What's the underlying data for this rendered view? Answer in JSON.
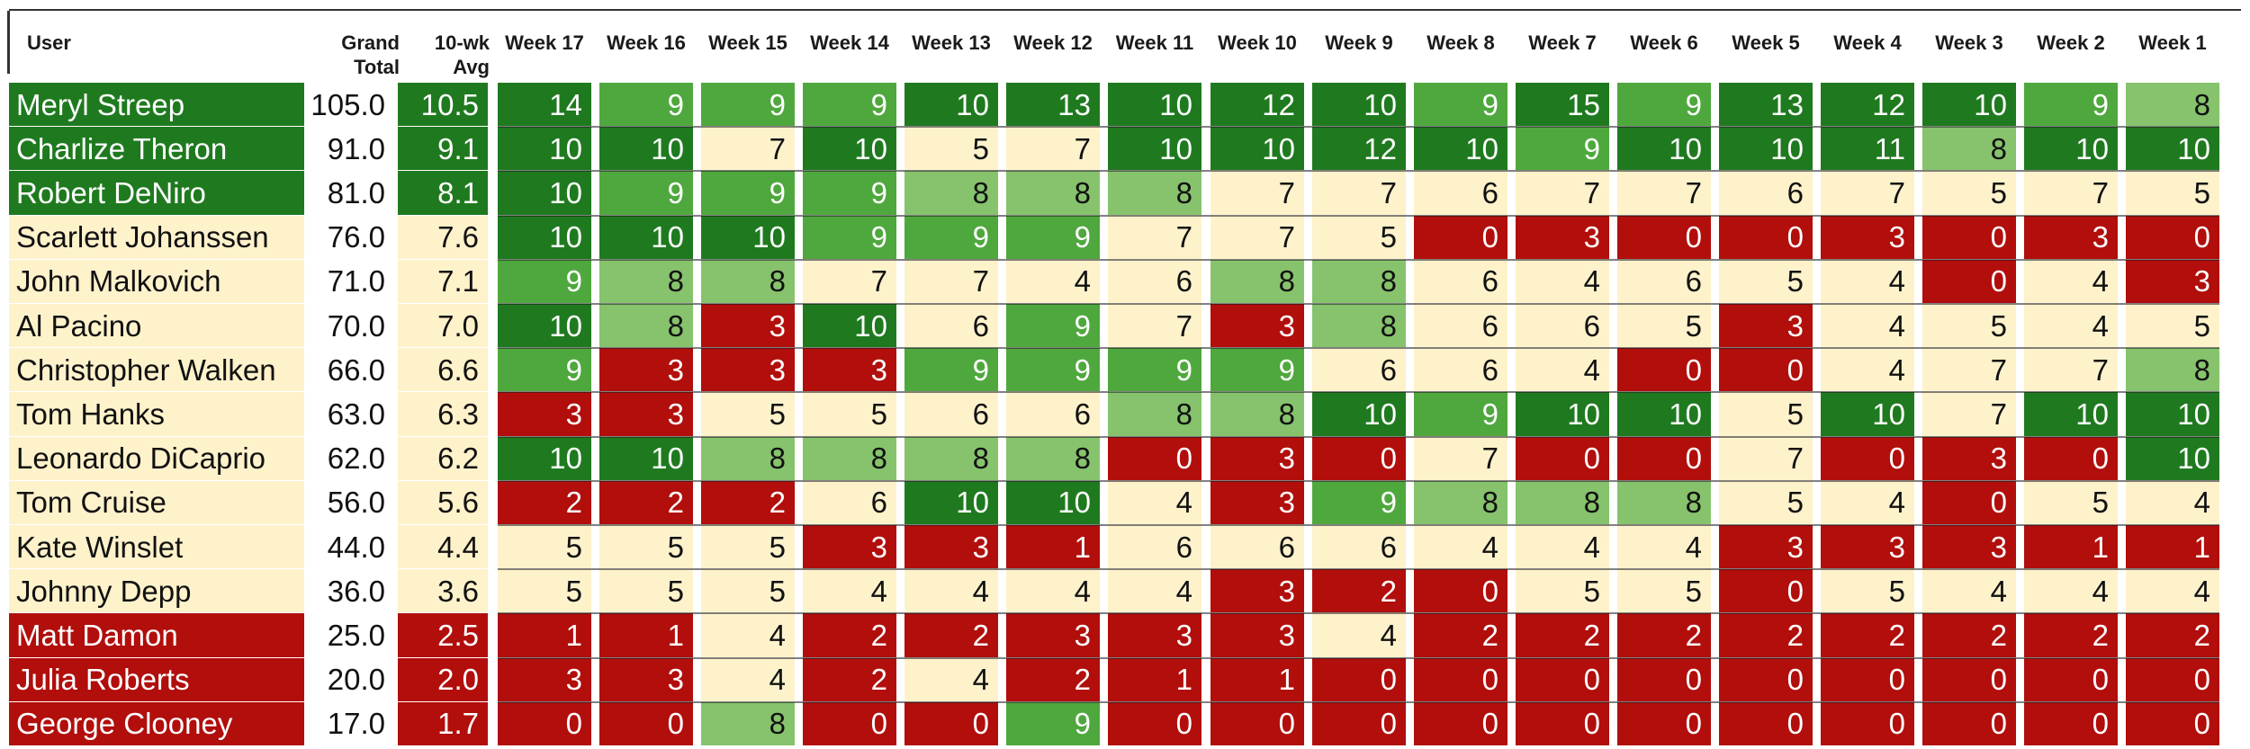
{
  "headers": {
    "user": "User",
    "grand_total": [
      "Grand",
      "Total"
    ],
    "avg": [
      "10-wk",
      "Avg"
    ],
    "weeks": [
      "Week 17",
      "Week 16",
      "Week 15",
      "Week 14",
      "Week 13",
      "Week 12",
      "Week 11",
      "Week 10",
      "Week 9",
      "Week 8",
      "Week 7",
      "Week 6",
      "Week 5",
      "Week 4",
      "Week 3",
      "Week 2",
      "Week 1"
    ]
  },
  "colors": {
    "dark_green": "#1f7a1f",
    "medium_green": "#4fa83d",
    "light_green": "#86c36c",
    "cream": "#fef2cb",
    "red": "#b10e0c",
    "header_border": "#333333",
    "text_dark": "#111111",
    "text_light": "#ffffff"
  },
  "rows": [
    {
      "name": "Meryl Streep",
      "total": "105.0",
      "avg": "10.5",
      "tier": "dg",
      "weeks": [
        14,
        9,
        9,
        9,
        10,
        13,
        10,
        12,
        10,
        9,
        15,
        9,
        13,
        12,
        10,
        9,
        8
      ]
    },
    {
      "name": "Charlize Theron",
      "total": "91.0",
      "avg": "9.1",
      "tier": "dg",
      "weeks": [
        10,
        10,
        7,
        10,
        5,
        7,
        10,
        10,
        12,
        10,
        9,
        10,
        10,
        11,
        8,
        10,
        10
      ]
    },
    {
      "name": "Robert DeNiro",
      "total": "81.0",
      "avg": "8.1",
      "tier": "dg",
      "weeks": [
        10,
        9,
        9,
        9,
        8,
        8,
        8,
        7,
        7,
        6,
        7,
        7,
        6,
        7,
        5,
        7,
        5
      ]
    },
    {
      "name": "Scarlett Johanssen",
      "total": "76.0",
      "avg": "7.6",
      "tier": "cr",
      "weeks": [
        10,
        10,
        10,
        9,
        9,
        9,
        7,
        7,
        5,
        0,
        3,
        0,
        0,
        3,
        0,
        3,
        0
      ]
    },
    {
      "name": "John Malkovich",
      "total": "71.0",
      "avg": "7.1",
      "tier": "cr",
      "weeks": [
        9,
        8,
        8,
        7,
        7,
        4,
        6,
        8,
        8,
        6,
        4,
        6,
        5,
        4,
        0,
        4,
        3
      ]
    },
    {
      "name": "Al Pacino",
      "total": "70.0",
      "avg": "7.0",
      "tier": "cr",
      "weeks": [
        10,
        8,
        3,
        10,
        6,
        9,
        7,
        3,
        8,
        6,
        6,
        5,
        3,
        4,
        5,
        4,
        5
      ]
    },
    {
      "name": "Christopher Walken",
      "total": "66.0",
      "avg": "6.6",
      "tier": "cr",
      "weeks": [
        9,
        3,
        3,
        3,
        9,
        9,
        9,
        9,
        6,
        6,
        4,
        0,
        0,
        4,
        7,
        7,
        8
      ]
    },
    {
      "name": "Tom Hanks",
      "total": "63.0",
      "avg": "6.3",
      "tier": "cr",
      "weeks": [
        3,
        3,
        5,
        5,
        6,
        6,
        8,
        8,
        10,
        9,
        10,
        10,
        5,
        10,
        7,
        10,
        10
      ]
    },
    {
      "name": "Leonardo DiCaprio",
      "total": "62.0",
      "avg": "6.2",
      "tier": "cr",
      "weeks": [
        10,
        10,
        8,
        8,
        8,
        8,
        0,
        3,
        0,
        7,
        0,
        0,
        7,
        0,
        3,
        0,
        10
      ]
    },
    {
      "name": "Tom Cruise",
      "total": "56.0",
      "avg": "5.6",
      "tier": "cr",
      "weeks": [
        2,
        2,
        2,
        6,
        10,
        10,
        4,
        3,
        9,
        8,
        8,
        8,
        5,
        4,
        0,
        5,
        4
      ]
    },
    {
      "name": "Kate Winslet",
      "total": "44.0",
      "avg": "4.4",
      "tier": "cr",
      "weeks": [
        5,
        5,
        5,
        3,
        3,
        1,
        6,
        6,
        6,
        4,
        4,
        4,
        3,
        3,
        3,
        1,
        1
      ]
    },
    {
      "name": "Johnny Depp",
      "total": "36.0",
      "avg": "3.6",
      "tier": "cr",
      "weeks": [
        5,
        5,
        5,
        4,
        4,
        4,
        4,
        3,
        2,
        0,
        5,
        5,
        0,
        5,
        4,
        4,
        4
      ]
    },
    {
      "name": "Matt Damon",
      "total": "25.0",
      "avg": "2.5",
      "tier": "rd",
      "weeks": [
        1,
        1,
        4,
        2,
        2,
        3,
        3,
        3,
        4,
        2,
        2,
        2,
        2,
        2,
        2,
        2,
        2
      ]
    },
    {
      "name": "Julia Roberts",
      "total": "20.0",
      "avg": "2.0",
      "tier": "rd",
      "weeks": [
        3,
        3,
        4,
        2,
        4,
        2,
        1,
        1,
        0,
        0,
        0,
        0,
        0,
        0,
        0,
        0,
        0
      ]
    },
    {
      "name": "George Clooney",
      "total": "17.0",
      "avg": "1.7",
      "tier": "rd",
      "weeks": [
        0,
        0,
        8,
        0,
        0,
        9,
        0,
        0,
        0,
        0,
        0,
        0,
        0,
        0,
        0,
        0,
        0
      ]
    }
  ],
  "cell_fill": [
    [
      "dg",
      "mg",
      "mg",
      "mg",
      "dg",
      "dg",
      "dg",
      "dg",
      "dg",
      "mg",
      "dg",
      "mg",
      "dg",
      "dg",
      "dg",
      "mg",
      "lg"
    ],
    [
      "dg",
      "dg",
      "cr",
      "dg",
      "cr",
      "cr",
      "dg",
      "dg",
      "dg",
      "dg",
      "mg",
      "dg",
      "dg",
      "dg",
      "lg",
      "dg",
      "dg"
    ],
    [
      "dg",
      "mg",
      "mg",
      "mg",
      "lg",
      "lg",
      "lg",
      "cr",
      "cr",
      "cr",
      "cr",
      "cr",
      "cr",
      "cr",
      "cr",
      "cr",
      "cr"
    ],
    [
      "dg",
      "dg",
      "dg",
      "mg",
      "mg",
      "mg",
      "cr",
      "cr",
      "cr",
      "rd",
      "rd",
      "rd",
      "rd",
      "rd",
      "rd",
      "rd",
      "rd"
    ],
    [
      "mg",
      "lg",
      "lg",
      "cr",
      "cr",
      "cr",
      "cr",
      "lg",
      "lg",
      "cr",
      "cr",
      "cr",
      "cr",
      "cr",
      "rd",
      "cr",
      "rd"
    ],
    [
      "dg",
      "lg",
      "rd",
      "dg",
      "cr",
      "mg",
      "cr",
      "rd",
      "lg",
      "cr",
      "cr",
      "cr",
      "rd",
      "cr",
      "cr",
      "cr",
      "cr"
    ],
    [
      "mg",
      "rd",
      "rd",
      "rd",
      "mg",
      "mg",
      "mg",
      "mg",
      "cr",
      "cr",
      "cr",
      "rd",
      "rd",
      "cr",
      "cr",
      "cr",
      "lg"
    ],
    [
      "rd",
      "rd",
      "cr",
      "cr",
      "cr",
      "cr",
      "lg",
      "lg",
      "dg",
      "mg",
      "dg",
      "dg",
      "cr",
      "dg",
      "cr",
      "dg",
      "dg"
    ],
    [
      "dg",
      "dg",
      "lg",
      "lg",
      "lg",
      "lg",
      "rd",
      "rd",
      "rd",
      "cr",
      "rd",
      "rd",
      "cr",
      "rd",
      "rd",
      "rd",
      "dg"
    ],
    [
      "rd",
      "rd",
      "rd",
      "cr",
      "dg",
      "dg",
      "cr",
      "rd",
      "mg",
      "lg",
      "lg",
      "lg",
      "cr",
      "cr",
      "rd",
      "cr",
      "cr"
    ],
    [
      "cr",
      "cr",
      "cr",
      "rd",
      "rd",
      "rd",
      "cr",
      "cr",
      "cr",
      "cr",
      "cr",
      "cr",
      "rd",
      "rd",
      "rd",
      "rd",
      "rd"
    ],
    [
      "cr",
      "cr",
      "cr",
      "cr",
      "cr",
      "cr",
      "cr",
      "rd",
      "rd",
      "rd",
      "cr",
      "cr",
      "rd",
      "cr",
      "cr",
      "cr",
      "cr"
    ],
    [
      "rd",
      "rd",
      "cr",
      "rd",
      "rd",
      "rd",
      "rd",
      "rd",
      "cr",
      "rd",
      "rd",
      "rd",
      "rd",
      "rd",
      "rd",
      "rd",
      "rd"
    ],
    [
      "rd",
      "rd",
      "cr",
      "rd",
      "cr",
      "rd",
      "rd",
      "rd",
      "rd",
      "rd",
      "rd",
      "rd",
      "rd",
      "rd",
      "rd",
      "rd",
      "rd"
    ],
    [
      "rd",
      "rd",
      "lg",
      "rd",
      "rd",
      "mg",
      "rd",
      "rd",
      "rd",
      "rd",
      "rd",
      "rd",
      "rd",
      "rd",
      "rd",
      "rd",
      "rd"
    ]
  ]
}
